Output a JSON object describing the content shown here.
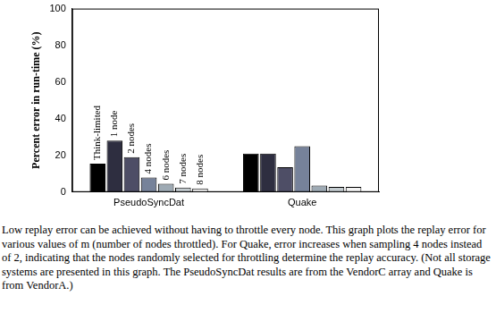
{
  "chart_data": {
    "type": "bar",
    "y_label": "Percent error in run-time (%)",
    "categories": [
      "PseudoSyncDat",
      "Quake"
    ],
    "series": [
      {
        "name": "Think-limited",
        "color": "#000000",
        "values": [
          15.5,
          21
        ]
      },
      {
        "name": "1 node",
        "color": "#2e2e40",
        "values": [
          28,
          21
        ]
      },
      {
        "name": "2 nodes",
        "color": "#4e4e66",
        "values": [
          19,
          13.5
        ]
      },
      {
        "name": "4 nodes",
        "color": "#76829a",
        "values": [
          8,
          25
        ]
      },
      {
        "name": "6 nodes",
        "color": "#9eaab4",
        "values": [
          4.5,
          3.5
        ]
      },
      {
        "name": "7 nodes",
        "color": "#c4ccd0",
        "values": [
          2.5,
          2.8
        ]
      },
      {
        "name": "8 nodes",
        "color": "#f4f4f4",
        "values": [
          2,
          2.8
        ]
      }
    ],
    "ylim": [
      0,
      100
    ],
    "yticks": [
      0,
      20,
      40,
      60,
      80,
      100
    ],
    "grid": false,
    "caption": "Low replay error can be achieved without having to throttle every node. This graph plots the replay error for various values of m (number of nodes throttled). For Quake, error increases when sampling 4 nodes instead of 2, indicating that the nodes randomly selected for throttling determine the replay accuracy. (Not all storage systems are presented in this graph. The PseudoSyncDat results are from the VendorC array and Quake is from VendorA.)"
  }
}
